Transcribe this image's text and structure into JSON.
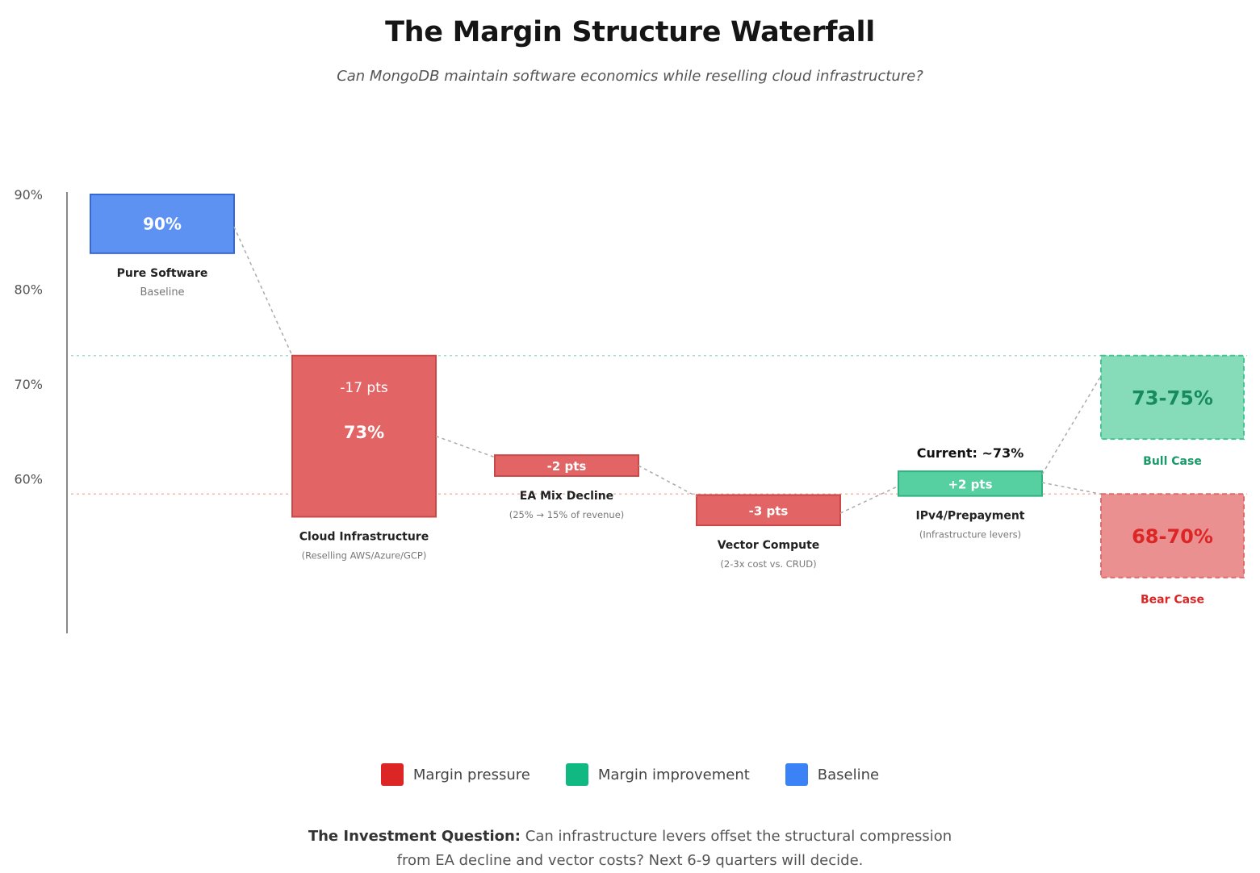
{
  "title": "The Margin Structure Waterfall",
  "subtitle": "Can MongoDB maintain software economics while reselling cloud infrastructure?",
  "colors": {
    "pressure": "#e36464",
    "pressure_border": "#c94848",
    "improvement": "#56cfa1",
    "improvement_border": "#2fb27f",
    "baseline": "#5e92f2",
    "baseline_border": "#3568d4",
    "bull_fill": "#86dcb9",
    "bull_text": "#178a5e",
    "bear_fill": "#eb9090",
    "bear_text": "#dc2626"
  },
  "chart_data": {
    "type": "waterfall",
    "y_ticks": [
      "90%",
      "80%",
      "70%",
      "60%"
    ],
    "y_tick_values": [
      90,
      80,
      70,
      60
    ],
    "ylim": [
      44,
      90
    ],
    "steps": [
      {
        "name": "Pure Software",
        "sublabel": "Baseline",
        "start": 90,
        "end": 83.8,
        "kind": "baseline",
        "delta_label": "",
        "value_label": "90%"
      },
      {
        "name": "Cloud Infrastructure",
        "sublabel": "(Reselling AWS/Azure/GCP)",
        "start": 73,
        "end": 56,
        "kind": "pressure",
        "delta_label": "-17 pts",
        "value_label": "73%"
      },
      {
        "name": "EA Mix Decline",
        "sublabel": "(25% → 15% of revenue)",
        "start": 62.5,
        "end": 60.3,
        "kind": "pressure",
        "delta_label": "-2 pts",
        "value_label": ""
      },
      {
        "name": "Vector Compute",
        "sublabel": "(2-3x cost vs. CRUD)",
        "start": 58.3,
        "end": 55.1,
        "kind": "pressure",
        "delta_label": "-3 pts",
        "value_label": ""
      },
      {
        "name": "IPv4/Prepayment",
        "sublabel": "(Infrastructure levers)",
        "start": 58.2,
        "end": 60.8,
        "kind": "improvement",
        "delta_label": "+2 pts",
        "value_label": ""
      }
    ],
    "current_label": "Current: ~73%",
    "scenarios": [
      {
        "name": "Bull Case",
        "range_label": "73-75%",
        "top": 73,
        "bottom": 64.2,
        "kind": "bull"
      },
      {
        "name": "Bear Case",
        "range_label": "68-70%",
        "top": 58.4,
        "bottom": 49.6,
        "kind": "bear"
      }
    ],
    "reference_lines": [
      {
        "value": 73,
        "kind": "bull"
      },
      {
        "value": 58.4,
        "kind": "bear"
      }
    ]
  },
  "legend": [
    {
      "label": "Margin pressure",
      "color": "#dc2626"
    },
    {
      "label": "Margin improvement",
      "color": "#10b981"
    },
    {
      "label": "Baseline",
      "color": "#3b82f6"
    }
  ],
  "footer": {
    "bold": "The Investment Question:",
    "line1": "Can infrastructure levers offset the structural compression",
    "line2": "from EA decline and vector costs? Next 6-9 quarters will decide."
  }
}
